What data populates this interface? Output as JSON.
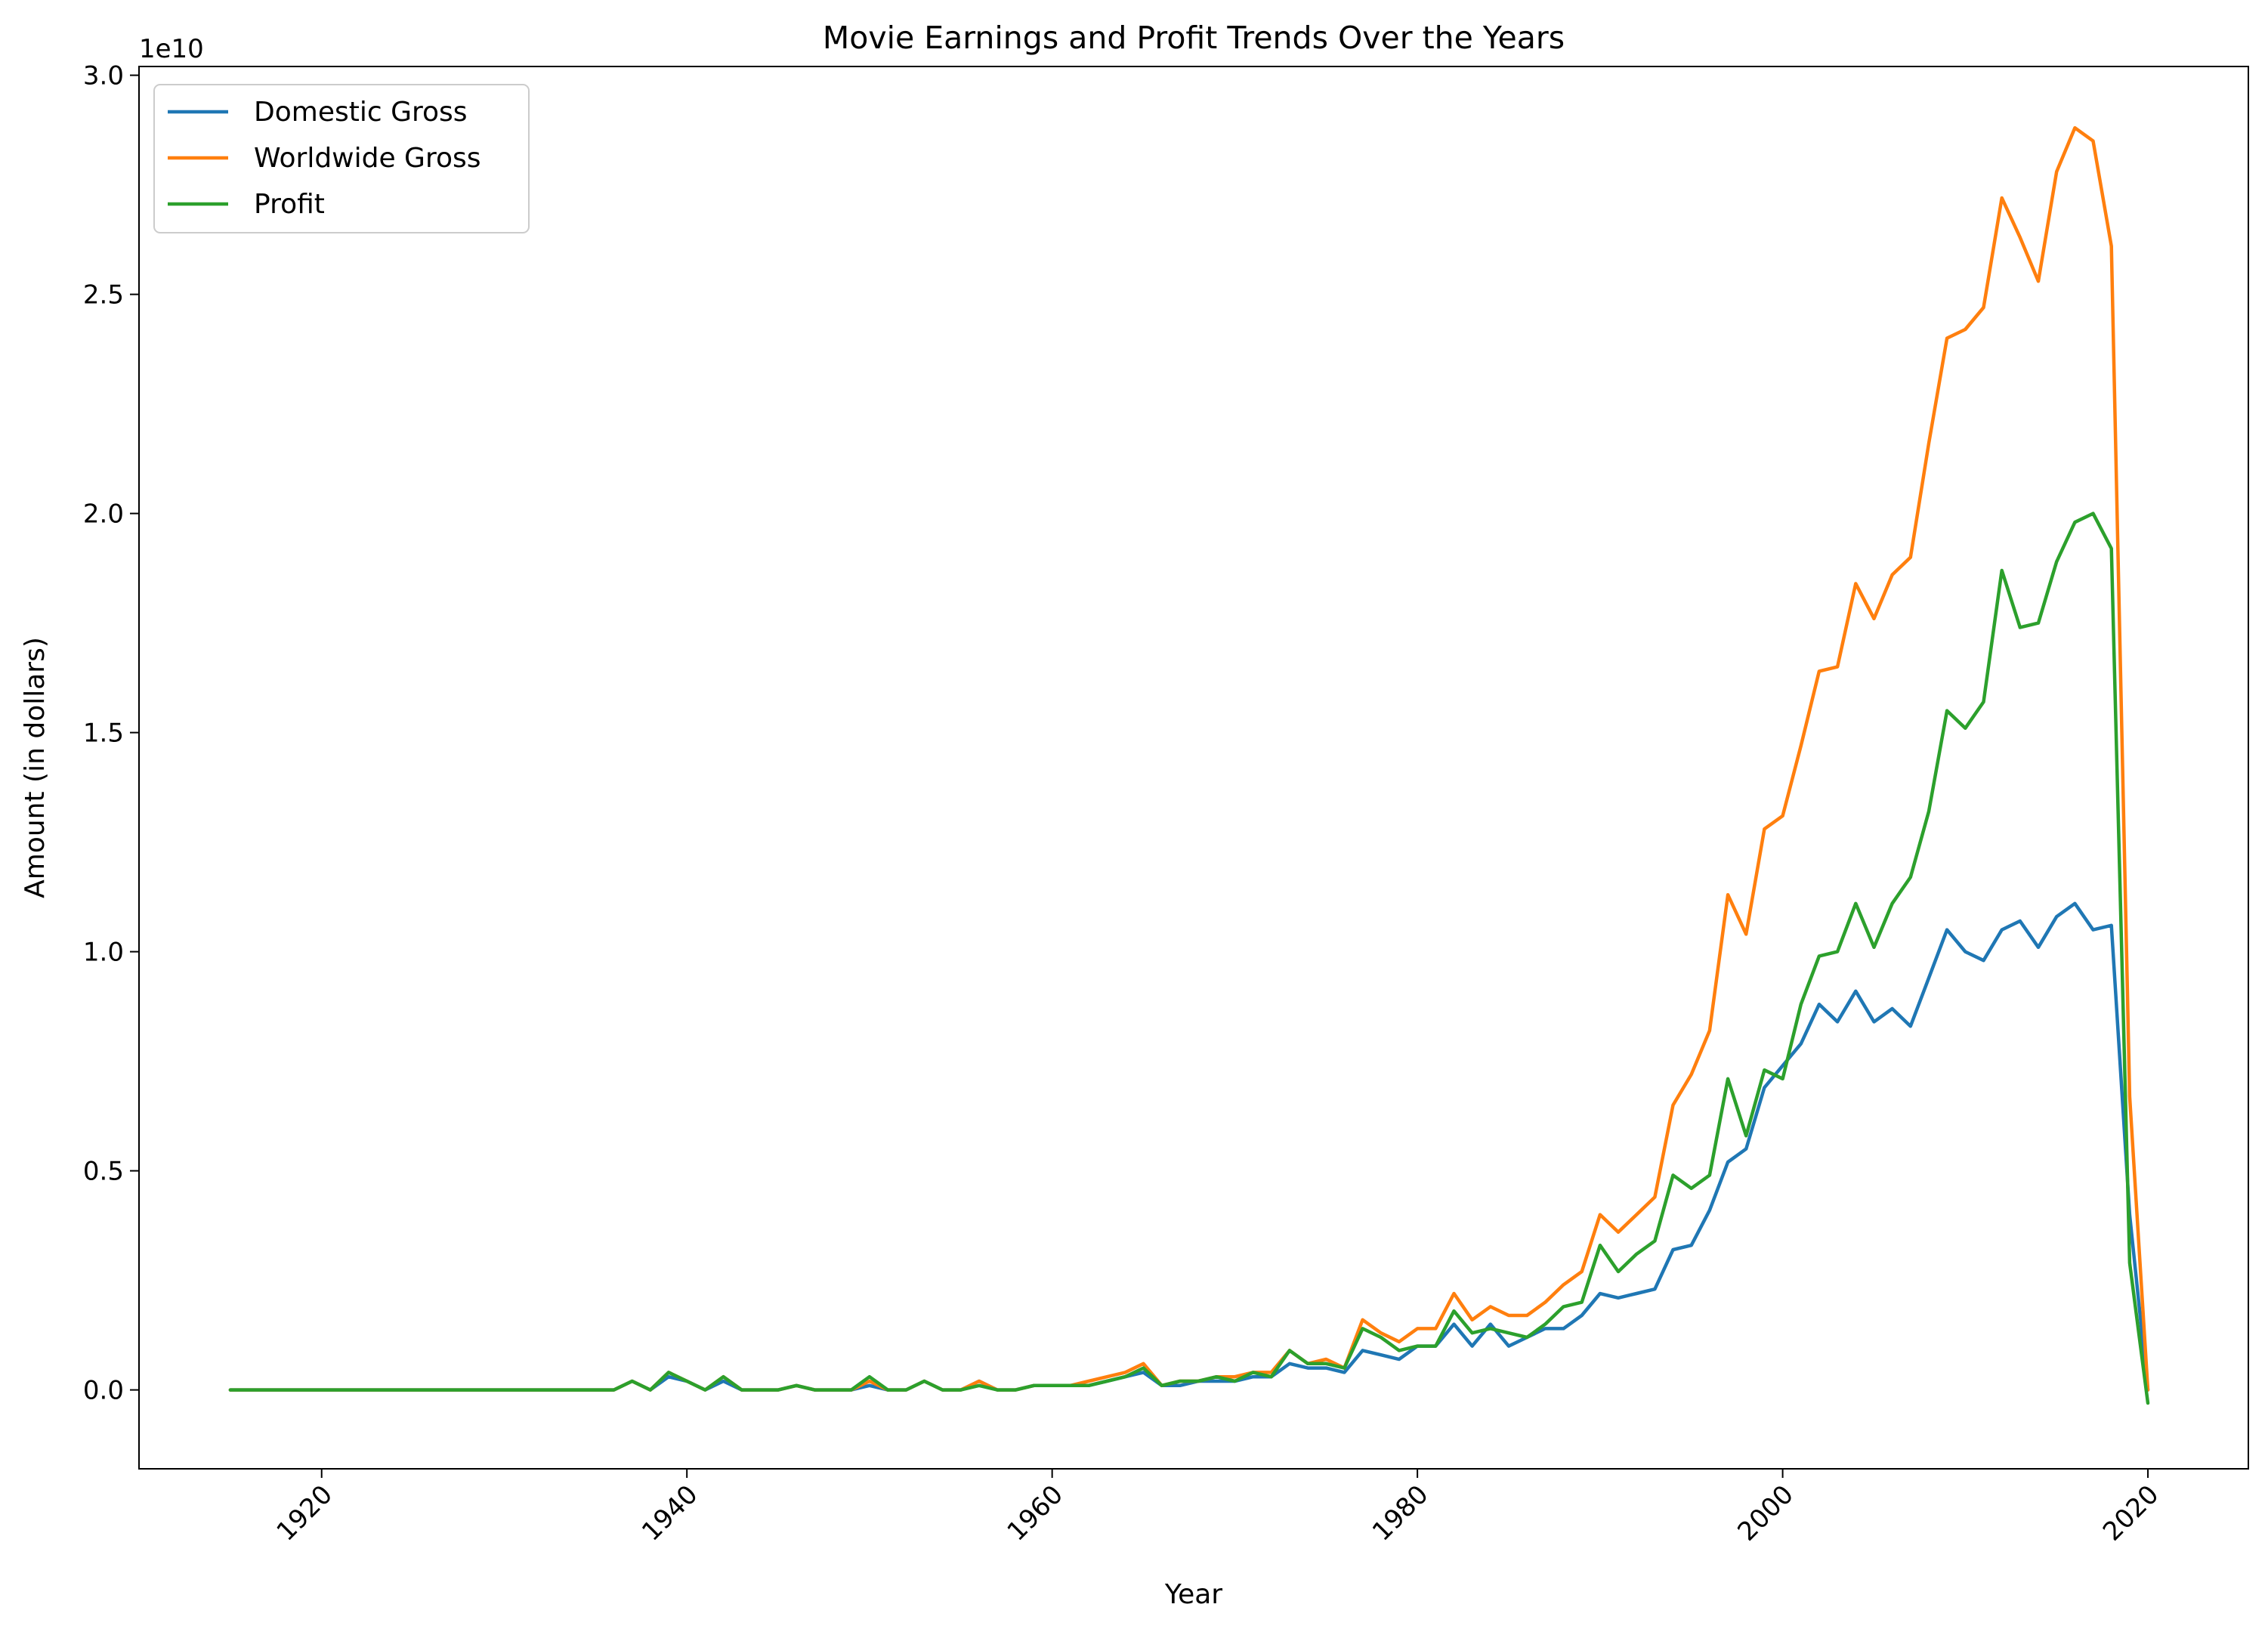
{
  "chart_data": {
    "type": "line",
    "title": "Movie Earnings and Profit Trends Over the Years",
    "xlabel": "Year",
    "ylabel": "Amount (in dollars)",
    "y_offset_label": "1e10",
    "xlim": [
      1910,
      2025.5
    ],
    "ylim": [
      -0.18,
      3.02
    ],
    "x_ticks": [
      1920,
      1940,
      1960,
      1980,
      2000,
      2020
    ],
    "y_ticks": [
      0.0,
      0.5,
      1.0,
      1.5,
      2.0,
      2.5,
      3.0
    ],
    "y_tick_labels": [
      "0.0",
      "0.5",
      "1.0",
      "1.5",
      "2.0",
      "2.5",
      "3.0"
    ],
    "x_tick_rotation": -45,
    "grid": false,
    "legend_position": "upper-left",
    "colors": {
      "domestic": "#1f77b4",
      "worldwide": "#ff7f0e",
      "profit": "#2ca02c",
      "axis": "#000000",
      "legend_border": "#cccccc"
    },
    "series": [
      {
        "name": "Domestic Gross",
        "color": "#1f77b4",
        "points": [
          [
            1915,
            0.0
          ],
          [
            1920,
            0.0
          ],
          [
            1925,
            0.0
          ],
          [
            1930,
            0.0
          ],
          [
            1936,
            0.0
          ],
          [
            1937,
            0.02
          ],
          [
            1938,
            0.0
          ],
          [
            1939,
            0.03
          ],
          [
            1940,
            0.02
          ],
          [
            1941,
            0.0
          ],
          [
            1942,
            0.02
          ],
          [
            1943,
            0.0
          ],
          [
            1945,
            0.0
          ],
          [
            1946,
            0.01
          ],
          [
            1947,
            0.0
          ],
          [
            1949,
            0.0
          ],
          [
            1950,
            0.01
          ],
          [
            1951,
            0.0
          ],
          [
            1952,
            0.0
          ],
          [
            1953,
            0.02
          ],
          [
            1954,
            0.0
          ],
          [
            1955,
            0.0
          ],
          [
            1956,
            0.02
          ],
          [
            1957,
            0.0
          ],
          [
            1958,
            0.0
          ],
          [
            1959,
            0.01
          ],
          [
            1960,
            0.01
          ],
          [
            1961,
            0.01
          ],
          [
            1962,
            0.01
          ],
          [
            1963,
            0.02
          ],
          [
            1964,
            0.03
          ],
          [
            1965,
            0.04
          ],
          [
            1966,
            0.01
          ],
          [
            1967,
            0.01
          ],
          [
            1968,
            0.02
          ],
          [
            1969,
            0.02
          ],
          [
            1970,
            0.02
          ],
          [
            1971,
            0.03
          ],
          [
            1972,
            0.03
          ],
          [
            1973,
            0.06
          ],
          [
            1974,
            0.05
          ],
          [
            1975,
            0.05
          ],
          [
            1976,
            0.04
          ],
          [
            1977,
            0.09
          ],
          [
            1978,
            0.08
          ],
          [
            1979,
            0.07
          ],
          [
            1980,
            0.1
          ],
          [
            1981,
            0.1
          ],
          [
            1982,
            0.15
          ],
          [
            1983,
            0.1
          ],
          [
            1984,
            0.15
          ],
          [
            1985,
            0.1
          ],
          [
            1986,
            0.12
          ],
          [
            1987,
            0.14
          ],
          [
            1988,
            0.14
          ],
          [
            1989,
            0.17
          ],
          [
            1990,
            0.22
          ],
          [
            1991,
            0.21
          ],
          [
            1992,
            0.22
          ],
          [
            1993,
            0.23
          ],
          [
            1994,
            0.32
          ],
          [
            1995,
            0.33
          ],
          [
            1996,
            0.41
          ],
          [
            1997,
            0.52
          ],
          [
            1998,
            0.55
          ],
          [
            1999,
            0.69
          ],
          [
            2000,
            0.74
          ],
          [
            2001,
            0.79
          ],
          [
            2002,
            0.88
          ],
          [
            2003,
            0.84
          ],
          [
            2004,
            0.91
          ],
          [
            2005,
            0.84
          ],
          [
            2006,
            0.87
          ],
          [
            2007,
            0.83
          ],
          [
            2008,
            0.94
          ],
          [
            2009,
            1.05
          ],
          [
            2010,
            1.0
          ],
          [
            2011,
            0.98
          ],
          [
            2012,
            1.05
          ],
          [
            2013,
            1.07
          ],
          [
            2014,
            1.01
          ],
          [
            2015,
            1.08
          ],
          [
            2016,
            1.11
          ],
          [
            2017,
            1.05
          ],
          [
            2018,
            1.06
          ],
          [
            2019,
            0.4
          ],
          [
            2020,
            0.0
          ]
        ]
      },
      {
        "name": "Worldwide Gross",
        "color": "#ff7f0e",
        "points": [
          [
            1915,
            0.0
          ],
          [
            1920,
            0.0
          ],
          [
            1925,
            0.0
          ],
          [
            1930,
            0.0
          ],
          [
            1936,
            0.0
          ],
          [
            1937,
            0.02
          ],
          [
            1938,
            0.0
          ],
          [
            1939,
            0.04
          ],
          [
            1940,
            0.02
          ],
          [
            1941,
            0.0
          ],
          [
            1942,
            0.03
          ],
          [
            1943,
            0.0
          ],
          [
            1945,
            0.0
          ],
          [
            1946,
            0.01
          ],
          [
            1947,
            0.0
          ],
          [
            1949,
            0.0
          ],
          [
            1950,
            0.02
          ],
          [
            1951,
            0.0
          ],
          [
            1952,
            0.0
          ],
          [
            1953,
            0.02
          ],
          [
            1954,
            0.0
          ],
          [
            1955,
            0.0
          ],
          [
            1956,
            0.02
          ],
          [
            1957,
            0.0
          ],
          [
            1958,
            0.0
          ],
          [
            1959,
            0.01
          ],
          [
            1960,
            0.01
          ],
          [
            1961,
            0.01
          ],
          [
            1962,
            0.02
          ],
          [
            1963,
            0.03
          ],
          [
            1964,
            0.04
          ],
          [
            1965,
            0.06
          ],
          [
            1966,
            0.01
          ],
          [
            1967,
            0.02
          ],
          [
            1968,
            0.02
          ],
          [
            1969,
            0.03
          ],
          [
            1970,
            0.03
          ],
          [
            1971,
            0.04
          ],
          [
            1972,
            0.04
          ],
          [
            1973,
            0.09
          ],
          [
            1974,
            0.06
          ],
          [
            1975,
            0.07
          ],
          [
            1976,
            0.05
          ],
          [
            1977,
            0.16
          ],
          [
            1978,
            0.13
          ],
          [
            1979,
            0.11
          ],
          [
            1980,
            0.14
          ],
          [
            1981,
            0.14
          ],
          [
            1982,
            0.22
          ],
          [
            1983,
            0.16
          ],
          [
            1984,
            0.19
          ],
          [
            1985,
            0.17
          ],
          [
            1986,
            0.17
          ],
          [
            1987,
            0.2
          ],
          [
            1988,
            0.24
          ],
          [
            1989,
            0.27
          ],
          [
            1990,
            0.4
          ],
          [
            1991,
            0.36
          ],
          [
            1992,
            0.4
          ],
          [
            1993,
            0.44
          ],
          [
            1994,
            0.65
          ],
          [
            1995,
            0.72
          ],
          [
            1996,
            0.82
          ],
          [
            1997,
            1.13
          ],
          [
            1998,
            1.04
          ],
          [
            1999,
            1.28
          ],
          [
            2000,
            1.31
          ],
          [
            2001,
            1.47
          ],
          [
            2002,
            1.64
          ],
          [
            2003,
            1.65
          ],
          [
            2004,
            1.84
          ],
          [
            2005,
            1.76
          ],
          [
            2006,
            1.86
          ],
          [
            2007,
            1.9
          ],
          [
            2008,
            2.16
          ],
          [
            2009,
            2.4
          ],
          [
            2010,
            2.42
          ],
          [
            2011,
            2.47
          ],
          [
            2012,
            2.72
          ],
          [
            2013,
            2.63
          ],
          [
            2014,
            2.53
          ],
          [
            2015,
            2.78
          ],
          [
            2016,
            2.88
          ],
          [
            2017,
            2.85
          ],
          [
            2018,
            2.61
          ],
          [
            2019,
            0.67
          ],
          [
            2020,
            0.0
          ]
        ]
      },
      {
        "name": "Profit",
        "color": "#2ca02c",
        "points": [
          [
            1915,
            0.0
          ],
          [
            1920,
            0.0
          ],
          [
            1925,
            0.0
          ],
          [
            1930,
            0.0
          ],
          [
            1936,
            0.0
          ],
          [
            1937,
            0.02
          ],
          [
            1938,
            0.0
          ],
          [
            1939,
            0.04
          ],
          [
            1940,
            0.02
          ],
          [
            1941,
            0.0
          ],
          [
            1942,
            0.03
          ],
          [
            1943,
            0.0
          ],
          [
            1945,
            0.0
          ],
          [
            1946,
            0.01
          ],
          [
            1947,
            0.0
          ],
          [
            1949,
            0.0
          ],
          [
            1950,
            0.03
          ],
          [
            1951,
            0.0
          ],
          [
            1952,
            0.0
          ],
          [
            1953,
            0.02
          ],
          [
            1954,
            0.0
          ],
          [
            1955,
            0.0
          ],
          [
            1956,
            0.01
          ],
          [
            1957,
            0.0
          ],
          [
            1958,
            0.0
          ],
          [
            1959,
            0.01
          ],
          [
            1960,
            0.01
          ],
          [
            1961,
            0.01
          ],
          [
            1962,
            0.01
          ],
          [
            1963,
            0.02
          ],
          [
            1964,
            0.03
          ],
          [
            1965,
            0.05
          ],
          [
            1966,
            0.01
          ],
          [
            1967,
            0.02
          ],
          [
            1968,
            0.02
          ],
          [
            1969,
            0.03
          ],
          [
            1970,
            0.02
          ],
          [
            1971,
            0.04
          ],
          [
            1972,
            0.03
          ],
          [
            1973,
            0.09
          ],
          [
            1974,
            0.06
          ],
          [
            1975,
            0.06
          ],
          [
            1976,
            0.05
          ],
          [
            1977,
            0.14
          ],
          [
            1978,
            0.12
          ],
          [
            1979,
            0.09
          ],
          [
            1980,
            0.1
          ],
          [
            1981,
            0.1
          ],
          [
            1982,
            0.18
          ],
          [
            1983,
            0.13
          ],
          [
            1984,
            0.14
          ],
          [
            1985,
            0.13
          ],
          [
            1986,
            0.12
          ],
          [
            1987,
            0.15
          ],
          [
            1988,
            0.19
          ],
          [
            1989,
            0.2
          ],
          [
            1990,
            0.33
          ],
          [
            1991,
            0.27
          ],
          [
            1992,
            0.31
          ],
          [
            1993,
            0.34
          ],
          [
            1994,
            0.49
          ],
          [
            1995,
            0.46
          ],
          [
            1996,
            0.49
          ],
          [
            1997,
            0.71
          ],
          [
            1998,
            0.58
          ],
          [
            1999,
            0.73
          ],
          [
            2000,
            0.71
          ],
          [
            2001,
            0.88
          ],
          [
            2002,
            0.99
          ],
          [
            2003,
            1.0
          ],
          [
            2004,
            1.11
          ],
          [
            2005,
            1.01
          ],
          [
            2006,
            1.11
          ],
          [
            2007,
            1.17
          ],
          [
            2008,
            1.32
          ],
          [
            2009,
            1.55
          ],
          [
            2010,
            1.51
          ],
          [
            2011,
            1.57
          ],
          [
            2012,
            1.87
          ],
          [
            2013,
            1.74
          ],
          [
            2014,
            1.75
          ],
          [
            2015,
            1.89
          ],
          [
            2016,
            1.98
          ],
          [
            2017,
            2.0
          ],
          [
            2018,
            1.92
          ],
          [
            2019,
            0.29
          ],
          [
            2020,
            -0.03
          ]
        ]
      }
    ]
  }
}
